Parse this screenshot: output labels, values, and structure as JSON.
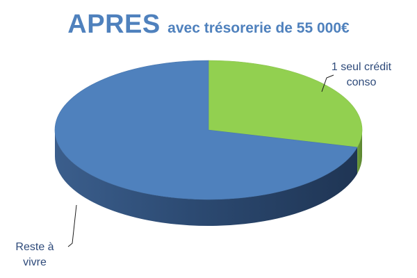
{
  "chart_data": {
    "type": "pie",
    "title": "APRES",
    "subtitle": "avec trésorerie de 55 000€",
    "slices": [
      {
        "label": "1 seul crédit conso",
        "label_lines": [
          "1 seul crédit",
          "conso"
        ],
        "value": 29,
        "color": "#92d050"
      },
      {
        "label": "Reste à vivre",
        "label_lines": [
          "Reste à",
          "vivre"
        ],
        "value": 71,
        "color": "#4f81bd"
      }
    ],
    "style": "3d",
    "legend": "none"
  }
}
